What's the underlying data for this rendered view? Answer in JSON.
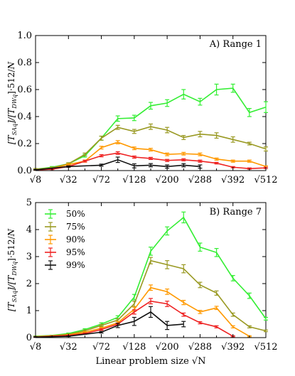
{
  "x_axis_label": "Linear problem size √N",
  "y_axis_label": "[T_SA]_q / [T_DW]_q · 512/N",
  "chart_data": [
    {
      "type": "line",
      "panel_label": "A) Range 1",
      "x_ticks": [
        "√8",
        "√32",
        "√72",
        "√128",
        "√200",
        "√288",
        "√392",
        "√512"
      ],
      "x_tick_values": [
        2.828,
        5.657,
        8.485,
        11.314,
        14.142,
        16.971,
        19.799,
        22.627
      ],
      "y_ticks": [
        "0.0",
        "0.2",
        "0.4",
        "0.6",
        "0.8",
        "1.0"
      ],
      "ylim": [
        0,
        1.0
      ],
      "xlim": [
        2.828,
        22.627
      ],
      "grid": false,
      "series": [
        {
          "color": "#33ee33",
          "x": [
            2.828,
            4.243,
            5.657,
            7.071,
            8.485,
            9.899,
            11.314,
            12.728,
            14.142,
            15.556,
            16.971,
            18.385,
            19.799,
            21.213,
            22.627
          ],
          "y": [
            0.01,
            0.025,
            0.05,
            0.11,
            0.24,
            0.385,
            0.39,
            0.48,
            0.5,
            0.565,
            0.51,
            0.6,
            0.61,
            0.43,
            0.47
          ],
          "err": [
            0.005,
            0.005,
            0.008,
            0.01,
            0.015,
            0.02,
            0.02,
            0.025,
            0.025,
            0.035,
            0.025,
            0.04,
            0.03,
            0.03,
            0.04
          ]
        },
        {
          "color": "#999922",
          "x": [
            2.828,
            4.243,
            5.657,
            7.071,
            8.485,
            9.899,
            11.314,
            12.728,
            14.142,
            15.556,
            16.971,
            18.385,
            19.799,
            21.213,
            22.627
          ],
          "y": [
            0.01,
            0.02,
            0.05,
            0.12,
            0.24,
            0.32,
            0.29,
            0.325,
            0.3,
            0.245,
            0.27,
            0.26,
            0.23,
            0.2,
            0.16
          ],
          "err": [
            0.005,
            0.005,
            0.008,
            0.01,
            0.015,
            0.015,
            0.015,
            0.02,
            0.02,
            0.015,
            0.02,
            0.02,
            0.02,
            0.01,
            0.015
          ]
        },
        {
          "color": "#ff9900",
          "x": [
            2.828,
            4.243,
            5.657,
            7.071,
            8.485,
            9.899,
            11.314,
            12.728,
            14.142,
            15.556,
            16.971,
            18.385,
            19.799,
            21.213,
            22.627
          ],
          "y": [
            0.005,
            0.015,
            0.045,
            0.07,
            0.17,
            0.21,
            0.165,
            0.155,
            0.12,
            0.125,
            0.12,
            0.085,
            0.07,
            0.07,
            0.03
          ],
          "err": [
            0.003,
            0.004,
            0.006,
            0.008,
            0.01,
            0.012,
            0.01,
            0.01,
            0.01,
            0.01,
            0.01,
            0.008,
            0.008,
            0.008,
            0.005
          ]
        },
        {
          "color": "#ee2222",
          "x": [
            2.828,
            4.243,
            5.657,
            7.071,
            8.485,
            9.899,
            11.314,
            12.728,
            14.142,
            15.556,
            16.971,
            18.385,
            19.799,
            21.213,
            22.627
          ],
          "y": [
            0.005,
            0.01,
            0.03,
            0.07,
            0.11,
            0.13,
            0.1,
            0.09,
            0.075,
            0.08,
            0.07,
            0.055,
            0.025,
            0.015,
            0.02
          ],
          "err": [
            0.002,
            0.003,
            0.005,
            0.006,
            0.008,
            0.01,
            0.008,
            0.008,
            0.008,
            0.008,
            0.008,
            0.006,
            0.005,
            0.005,
            0.005
          ]
        },
        {
          "color": "#111111",
          "x": [
            2.828,
            5.657,
            8.485,
            9.899,
            11.314,
            12.728,
            14.142,
            15.556,
            16.971
          ],
          "y": [
            0.005,
            0.03,
            0.04,
            0.08,
            0.035,
            0.04,
            0.03,
            0.04,
            0.03
          ],
          "err": [
            0.002,
            0.005,
            0.008,
            0.02,
            0.015,
            0.012,
            0.012,
            0.012,
            0.012
          ]
        }
      ]
    },
    {
      "type": "line",
      "panel_label": "B) Range 7",
      "x_ticks": [
        "√8",
        "√32",
        "√72",
        "√128",
        "√200",
        "√288",
        "√392",
        "√512"
      ],
      "x_tick_values": [
        2.828,
        5.657,
        8.485,
        11.314,
        14.142,
        16.971,
        19.799,
        22.627
      ],
      "y_ticks": [
        "0",
        "1",
        "2",
        "3",
        "4",
        "5"
      ],
      "ylim": [
        0,
        5
      ],
      "xlim": [
        2.828,
        22.627
      ],
      "grid": false,
      "legend": {
        "position": "upper-left",
        "entries": [
          "50%",
          "75%",
          "90%",
          "95%",
          "99%"
        ]
      },
      "series": [
        {
          "name": "50%",
          "color": "#33ee33",
          "x": [
            2.828,
            4.243,
            5.657,
            7.071,
            8.485,
            9.899,
            11.314,
            12.728,
            14.142,
            15.556,
            16.971,
            18.385,
            19.799,
            21.213,
            22.627
          ],
          "y": [
            0.05,
            0.08,
            0.15,
            0.3,
            0.5,
            0.75,
            1.5,
            3.2,
            3.95,
            4.45,
            3.35,
            3.15,
            2.2,
            1.55,
            0.7
          ],
          "err": [
            0.01,
            0.01,
            0.02,
            0.03,
            0.05,
            0.06,
            0.1,
            0.15,
            0.15,
            0.2,
            0.15,
            0.15,
            0.1,
            0.1,
            0.05
          ]
        },
        {
          "name": "75%",
          "color": "#999922",
          "x": [
            2.828,
            4.243,
            5.657,
            7.071,
            8.485,
            9.899,
            11.314,
            12.728,
            14.142,
            15.556,
            16.971,
            18.385,
            19.799,
            21.213,
            22.627
          ],
          "y": [
            0.04,
            0.07,
            0.12,
            0.25,
            0.45,
            0.65,
            1.25,
            2.85,
            2.7,
            2.55,
            1.95,
            1.65,
            0.85,
            0.4,
            0.25
          ],
          "err": [
            0.01,
            0.01,
            0.02,
            0.03,
            0.04,
            0.05,
            0.1,
            0.12,
            0.15,
            0.15,
            0.1,
            0.08,
            0.06,
            0.04,
            0.03
          ]
        },
        {
          "name": "90%",
          "color": "#ff9900",
          "x": [
            2.828,
            4.243,
            5.657,
            7.071,
            8.485,
            9.899,
            11.314,
            12.728,
            14.142,
            15.556,
            16.971,
            18.385,
            19.799,
            21.213
          ],
          "y": [
            0.03,
            0.06,
            0.1,
            0.2,
            0.35,
            0.55,
            1.05,
            1.85,
            1.7,
            1.3,
            0.95,
            1.1,
            0.4,
            0.05
          ],
          "err": [
            0.01,
            0.01,
            0.01,
            0.02,
            0.03,
            0.05,
            0.08,
            0.1,
            0.1,
            0.08,
            0.06,
            0.06,
            0.04,
            0.02
          ]
        },
        {
          "name": "95%",
          "color": "#ee2222",
          "x": [
            2.828,
            4.243,
            5.657,
            7.071,
            8.485,
            9.899,
            11.314,
            12.728,
            14.142,
            15.556,
            16.971,
            18.385,
            19.799
          ],
          "y": [
            0.02,
            0.05,
            0.08,
            0.15,
            0.3,
            0.5,
            0.95,
            1.35,
            1.25,
            0.85,
            0.55,
            0.4,
            0.05
          ],
          "err": [
            0.01,
            0.01,
            0.01,
            0.02,
            0.03,
            0.04,
            0.08,
            0.1,
            0.1,
            0.06,
            0.04,
            0.04,
            0.02
          ]
        },
        {
          "name": "99%",
          "color": "#111111",
          "x": [
            2.828,
            5.657,
            8.485,
            9.899,
            11.314,
            12.728,
            14.142,
            15.556
          ],
          "y": [
            0.02,
            0.05,
            0.2,
            0.45,
            0.6,
            0.95,
            0.45,
            0.5
          ],
          "err": [
            0.01,
            0.01,
            0.03,
            0.08,
            0.15,
            0.2,
            0.15,
            0.1
          ]
        }
      ]
    }
  ]
}
